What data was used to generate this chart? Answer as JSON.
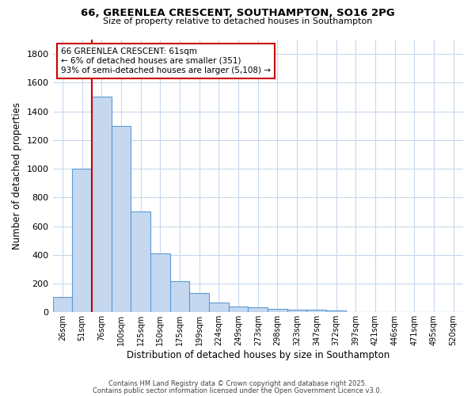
{
  "title1": "66, GREENLEA CRESCENT, SOUTHAMPTON, SO16 2PG",
  "title2": "Size of property relative to detached houses in Southampton",
  "xlabel": "Distribution of detached houses by size in Southampton",
  "ylabel": "Number of detached properties",
  "bar_labels": [
    "26sqm",
    "51sqm",
    "76sqm",
    "100sqm",
    "125sqm",
    "150sqm",
    "175sqm",
    "199sqm",
    "224sqm",
    "249sqm",
    "273sqm",
    "298sqm",
    "323sqm",
    "347sqm",
    "372sqm",
    "397sqm",
    "421sqm",
    "446sqm",
    "471sqm",
    "495sqm",
    "520sqm"
  ],
  "bar_values": [
    105,
    1000,
    1500,
    1300,
    700,
    410,
    215,
    135,
    70,
    40,
    35,
    25,
    20,
    18,
    15,
    0,
    0,
    0,
    0,
    0,
    0
  ],
  "bar_color": "#c5d8f0",
  "bar_edge_color": "#5b9bd5",
  "vline_color": "#cc0000",
  "vline_x_index": 1.5,
  "annotation_title": "66 GREENLEA CRESCENT: 61sqm",
  "annotation_line1": "← 6% of detached houses are smaller (351)",
  "annotation_line2": "93% of semi-detached houses are larger (5,108) →",
  "annotation_box_color": "#ffffff",
  "annotation_box_edge": "#cc0000",
  "ylim": [
    0,
    1900
  ],
  "yticks": [
    0,
    200,
    400,
    600,
    800,
    1000,
    1200,
    1400,
    1600,
    1800
  ],
  "footer1": "Contains HM Land Registry data © Crown copyright and database right 2025.",
  "footer2": "Contains public sector information licensed under the Open Government Licence v3.0.",
  "bg_color": "#ffffff",
  "grid_color": "#c8d8ec"
}
